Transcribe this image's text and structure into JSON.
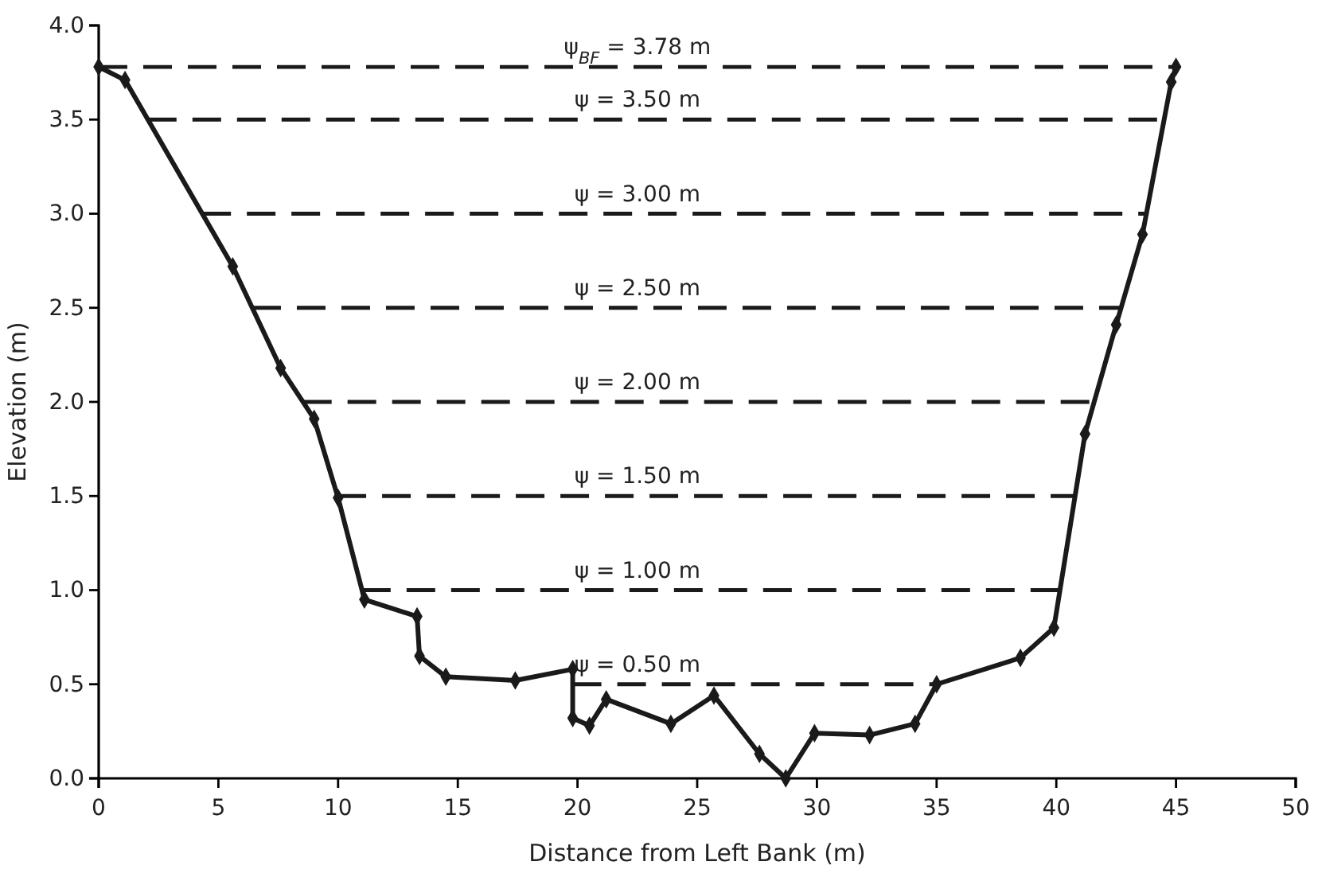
{
  "chart_data": {
    "type": "line",
    "xlabel": "Distance from Left Bank (m)",
    "ylabel": "Elevation (m)",
    "x": [
      0,
      1.1,
      5.6,
      7.6,
      9.0,
      10.0,
      11.1,
      13.3,
      13.4,
      14.5,
      17.4,
      19.8,
      19.8,
      20.5,
      21.2,
      23.9,
      25.7,
      27.6,
      28.7,
      29.9,
      32.2,
      34.1,
      35.0,
      38.5,
      39.9,
      41.2,
      42.5,
      43.6,
      44.8,
      45.0
    ],
    "series": [
      {
        "color": "#1a1a1a",
        "values": [
          3.78,
          3.71,
          2.72,
          2.18,
          1.91,
          1.49,
          0.95,
          0.86,
          0.65,
          0.54,
          0.52,
          0.58,
          0.32,
          0.28,
          0.42,
          0.29,
          0.44,
          0.13,
          0.0,
          0.24,
          0.23,
          0.29,
          0.5,
          0.64,
          0.8,
          1.83,
          2.41,
          2.89,
          3.7,
          3.78
        ]
      }
    ],
    "xlim": [
      0,
      50
    ],
    "xticks": [
      0,
      5,
      10,
      15,
      20,
      25,
      30,
      35,
      40,
      45,
      50
    ],
    "ylim": [
      0,
      4
    ],
    "yticks": [
      {
        "value": 0,
        "label": "0.0"
      },
      0.5,
      {
        "value": 1,
        "label": "1.0"
      },
      1.5,
      {
        "value": 2,
        "label": "2.0"
      },
      2.5,
      {
        "value": 3,
        "label": "3.0"
      },
      3.5,
      {
        "value": 4,
        "label": "4.0"
      }
    ],
    "marker": "diamond",
    "line_style": "solid",
    "grid": false,
    "ref_lines": [
      {
        "axis": "y",
        "value": 3.78,
        "label": "ψ$_{BF}$ = 3.78 m",
        "color": "#1a1a1a",
        "line_style": "dashed"
      },
      {
        "axis": "y",
        "value": 3.5,
        "label": "ψ = 3.50 m",
        "color": "#1a1a1a",
        "line_style": "dashed"
      },
      {
        "axis": "y",
        "value": 3.0,
        "label": "ψ = 3.00 m",
        "color": "#1a1a1a",
        "line_style": "dashed"
      },
      {
        "axis": "y",
        "value": 2.5,
        "label": "ψ = 2.50 m",
        "color": "#1a1a1a",
        "line_style": "dashed"
      },
      {
        "axis": "y",
        "value": 2.0,
        "label": "ψ = 2.00 m",
        "color": "#1a1a1a",
        "line_style": "dashed"
      },
      {
        "axis": "y",
        "value": 1.5,
        "label": "ψ = 1.50 m",
        "color": "#1a1a1a",
        "line_style": "dashed"
      },
      {
        "axis": "y",
        "value": 1.0,
        "label": "ψ = 1.00 m",
        "color": "#1a1a1a",
        "line_style": "dashed"
      },
      {
        "axis": "y",
        "value": 0.5,
        "label": "ψ = 0.50 m",
        "color": "#1a1a1a",
        "line_style": "dashed"
      }
    ]
  }
}
